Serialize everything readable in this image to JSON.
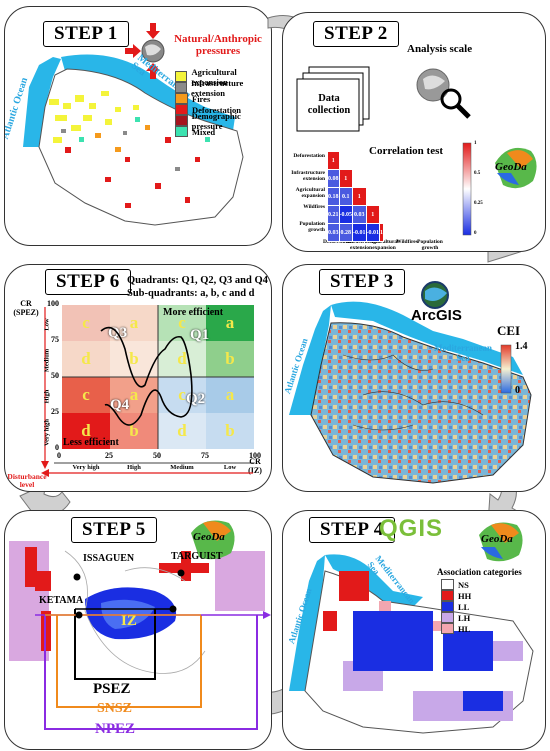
{
  "step1": {
    "title": "STEP 1",
    "pressures_title": "Natural/Anthropic pressures",
    "ocean": "Atlantic Ocean",
    "sea": "Mediterranean Sea",
    "legend": [
      {
        "label": "Agricultural expansion",
        "color": "#f4f43a"
      },
      {
        "label": "Infrastructure extension",
        "color": "#8a8a8a"
      },
      {
        "label": "Fires",
        "color": "#f59a1c"
      },
      {
        "label": "Deforestation",
        "color": "#e21a1a"
      },
      {
        "label": "Demographic pressure",
        "color": "#a5141e"
      },
      {
        "label": "Mixed",
        "color": "#3ce2b0"
      }
    ]
  },
  "step2": {
    "title": "STEP 2",
    "data_collection": "Data collection",
    "analysis_scale": "Analysis scale",
    "correlation_title": "Correlation test",
    "row_labels": [
      "Deforestation",
      "Infrastructure extension",
      "Agricultural expansion",
      "Wildfires",
      "Population growth"
    ],
    "col_labels": [
      "Deforestation",
      "Infrastructure extension",
      "Agricultural expansion",
      "Wildfires",
      "Population growth"
    ],
    "matrix": [
      [
        "1"
      ],
      [
        "0.08",
        "1"
      ],
      [
        "0.18",
        "0.1",
        "1"
      ],
      [
        "0.21",
        "-0.05",
        "0.03",
        "1"
      ],
      [
        "0.03",
        "0.28",
        "-0.01",
        "-0.01",
        "1"
      ]
    ],
    "scale_labels": [
      "1",
      "0.5",
      "0.25",
      "0"
    ]
  },
  "step3": {
    "title": "STEP 3",
    "software": "ArcGIS",
    "ocean": "Atlantic Ocean",
    "sea": "Mediterranean Sea",
    "index_label": "CEI",
    "index_max": "1.4",
    "index_min": "0"
  },
  "step4": {
    "title": "STEP 4",
    "software": "QGIS",
    "ocean": "Atlantic Ocean",
    "sea": "Mediterranean Sea",
    "legend_title": "Association categories",
    "legend": [
      {
        "label": "NS",
        "color": "#ffffff"
      },
      {
        "label": "HH",
        "color": "#e21a1a"
      },
      {
        "label": "LL",
        "color": "#1a2ee2"
      },
      {
        "label": "LH",
        "color": "#c8a8e8"
      },
      {
        "label": "HL",
        "color": "#f2a6b0"
      }
    ]
  },
  "step5": {
    "title": "STEP 5",
    "places": [
      "ISSAGUEN",
      "TARGUIST",
      "KETAMA"
    ],
    "core": "IZ",
    "zones": [
      "PSEZ",
      "SNSZ",
      "NPEZ"
    ],
    "zone_colors": [
      "#000000",
      "#f08a1c",
      "#8a2be2"
    ]
  },
  "step6": {
    "title": "STEP 6",
    "line1": "Quadrants: Q1, Q2, Q3 and Q4",
    "line2": "Sub-quadrants: a, b, c and d",
    "y_axis_title": "CR (SPEZ)",
    "x_axis_title": "CR (IZ)",
    "y_ticks": [
      "100",
      "75",
      "50",
      "25",
      "0"
    ],
    "x_ticks": [
      "0",
      "25",
      "50",
      "75",
      "100"
    ],
    "y_levels": [
      "Low",
      "Medium",
      "High",
      "Very high"
    ],
    "x_levels": [
      "Very high",
      "High",
      "Medium",
      "Low"
    ],
    "disturbance": "Disturbance level",
    "more_efficient": "More efficient",
    "less_efficient": "Less efficient",
    "quadrants": [
      "Q3",
      "Q1",
      "Q4",
      "Q2"
    ],
    "cells": [
      [
        "c",
        "a",
        "c",
        "a"
      ],
      [
        "d",
        "b",
        "d",
        "b"
      ],
      [
        "c",
        "a",
        "c",
        "a"
      ],
      [
        "d",
        "b",
        "d",
        "b"
      ]
    ]
  }
}
